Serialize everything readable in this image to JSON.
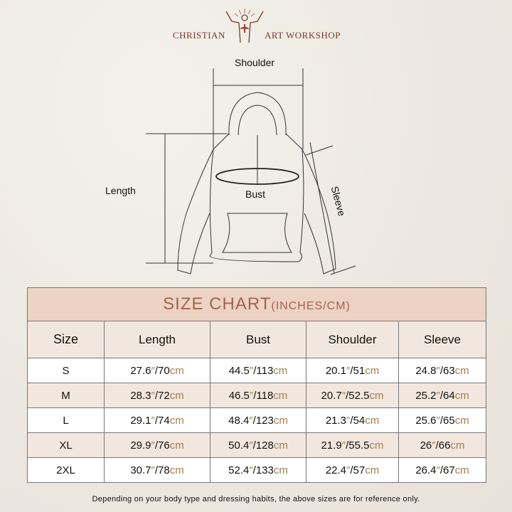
{
  "brand": {
    "left": "CHRISTIAN",
    "right": "ART WORKSHOP",
    "logo": "christ-open-arms-logo"
  },
  "diagram": {
    "shoulder": "Shoulder",
    "length": "Length",
    "bust": "Bust",
    "sleeve": "Sleeve"
  },
  "table": {
    "title": "SIZE CHART",
    "title_units": "(INCHES/CM)",
    "headers": [
      "Size",
      "Length",
      "Bust",
      "Shoulder",
      "Sleeve"
    ],
    "rows": [
      {
        "size": "S",
        "cells": [
          [
            "27.6",
            "70"
          ],
          [
            "44.5",
            "113"
          ],
          [
            "20.1",
            "51"
          ],
          [
            "24.8",
            "63"
          ]
        ]
      },
      {
        "size": "M",
        "cells": [
          [
            "28.3",
            "72"
          ],
          [
            "46.5",
            "118"
          ],
          [
            "20.7",
            "52.5"
          ],
          [
            "25.2",
            "64"
          ]
        ]
      },
      {
        "size": "L",
        "cells": [
          [
            "29.1",
            "74"
          ],
          [
            "48.4",
            "123"
          ],
          [
            "21.3",
            "54"
          ],
          [
            "25.6",
            "65"
          ]
        ]
      },
      {
        "size": "XL",
        "cells": [
          [
            "29.9",
            "76"
          ],
          [
            "50.4",
            "128"
          ],
          [
            "21.9",
            "55.5"
          ],
          [
            "26",
            "66"
          ]
        ]
      },
      {
        "size": "2XL",
        "cells": [
          [
            "30.7",
            "78"
          ],
          [
            "52.4",
            "133"
          ],
          [
            "22.4",
            "57"
          ],
          [
            "26.4",
            "67"
          ]
        ]
      }
    ],
    "inch_mark": "″",
    "cm_unit": "cm"
  },
  "note": "Depending on your body type and dressing habits, the above sizes are for reference only.",
  "colors": {
    "title_bg": "#ecd3c3",
    "title_text": "#a56250",
    "unit": "#a0804f",
    "brand": "#7a3a2c"
  }
}
